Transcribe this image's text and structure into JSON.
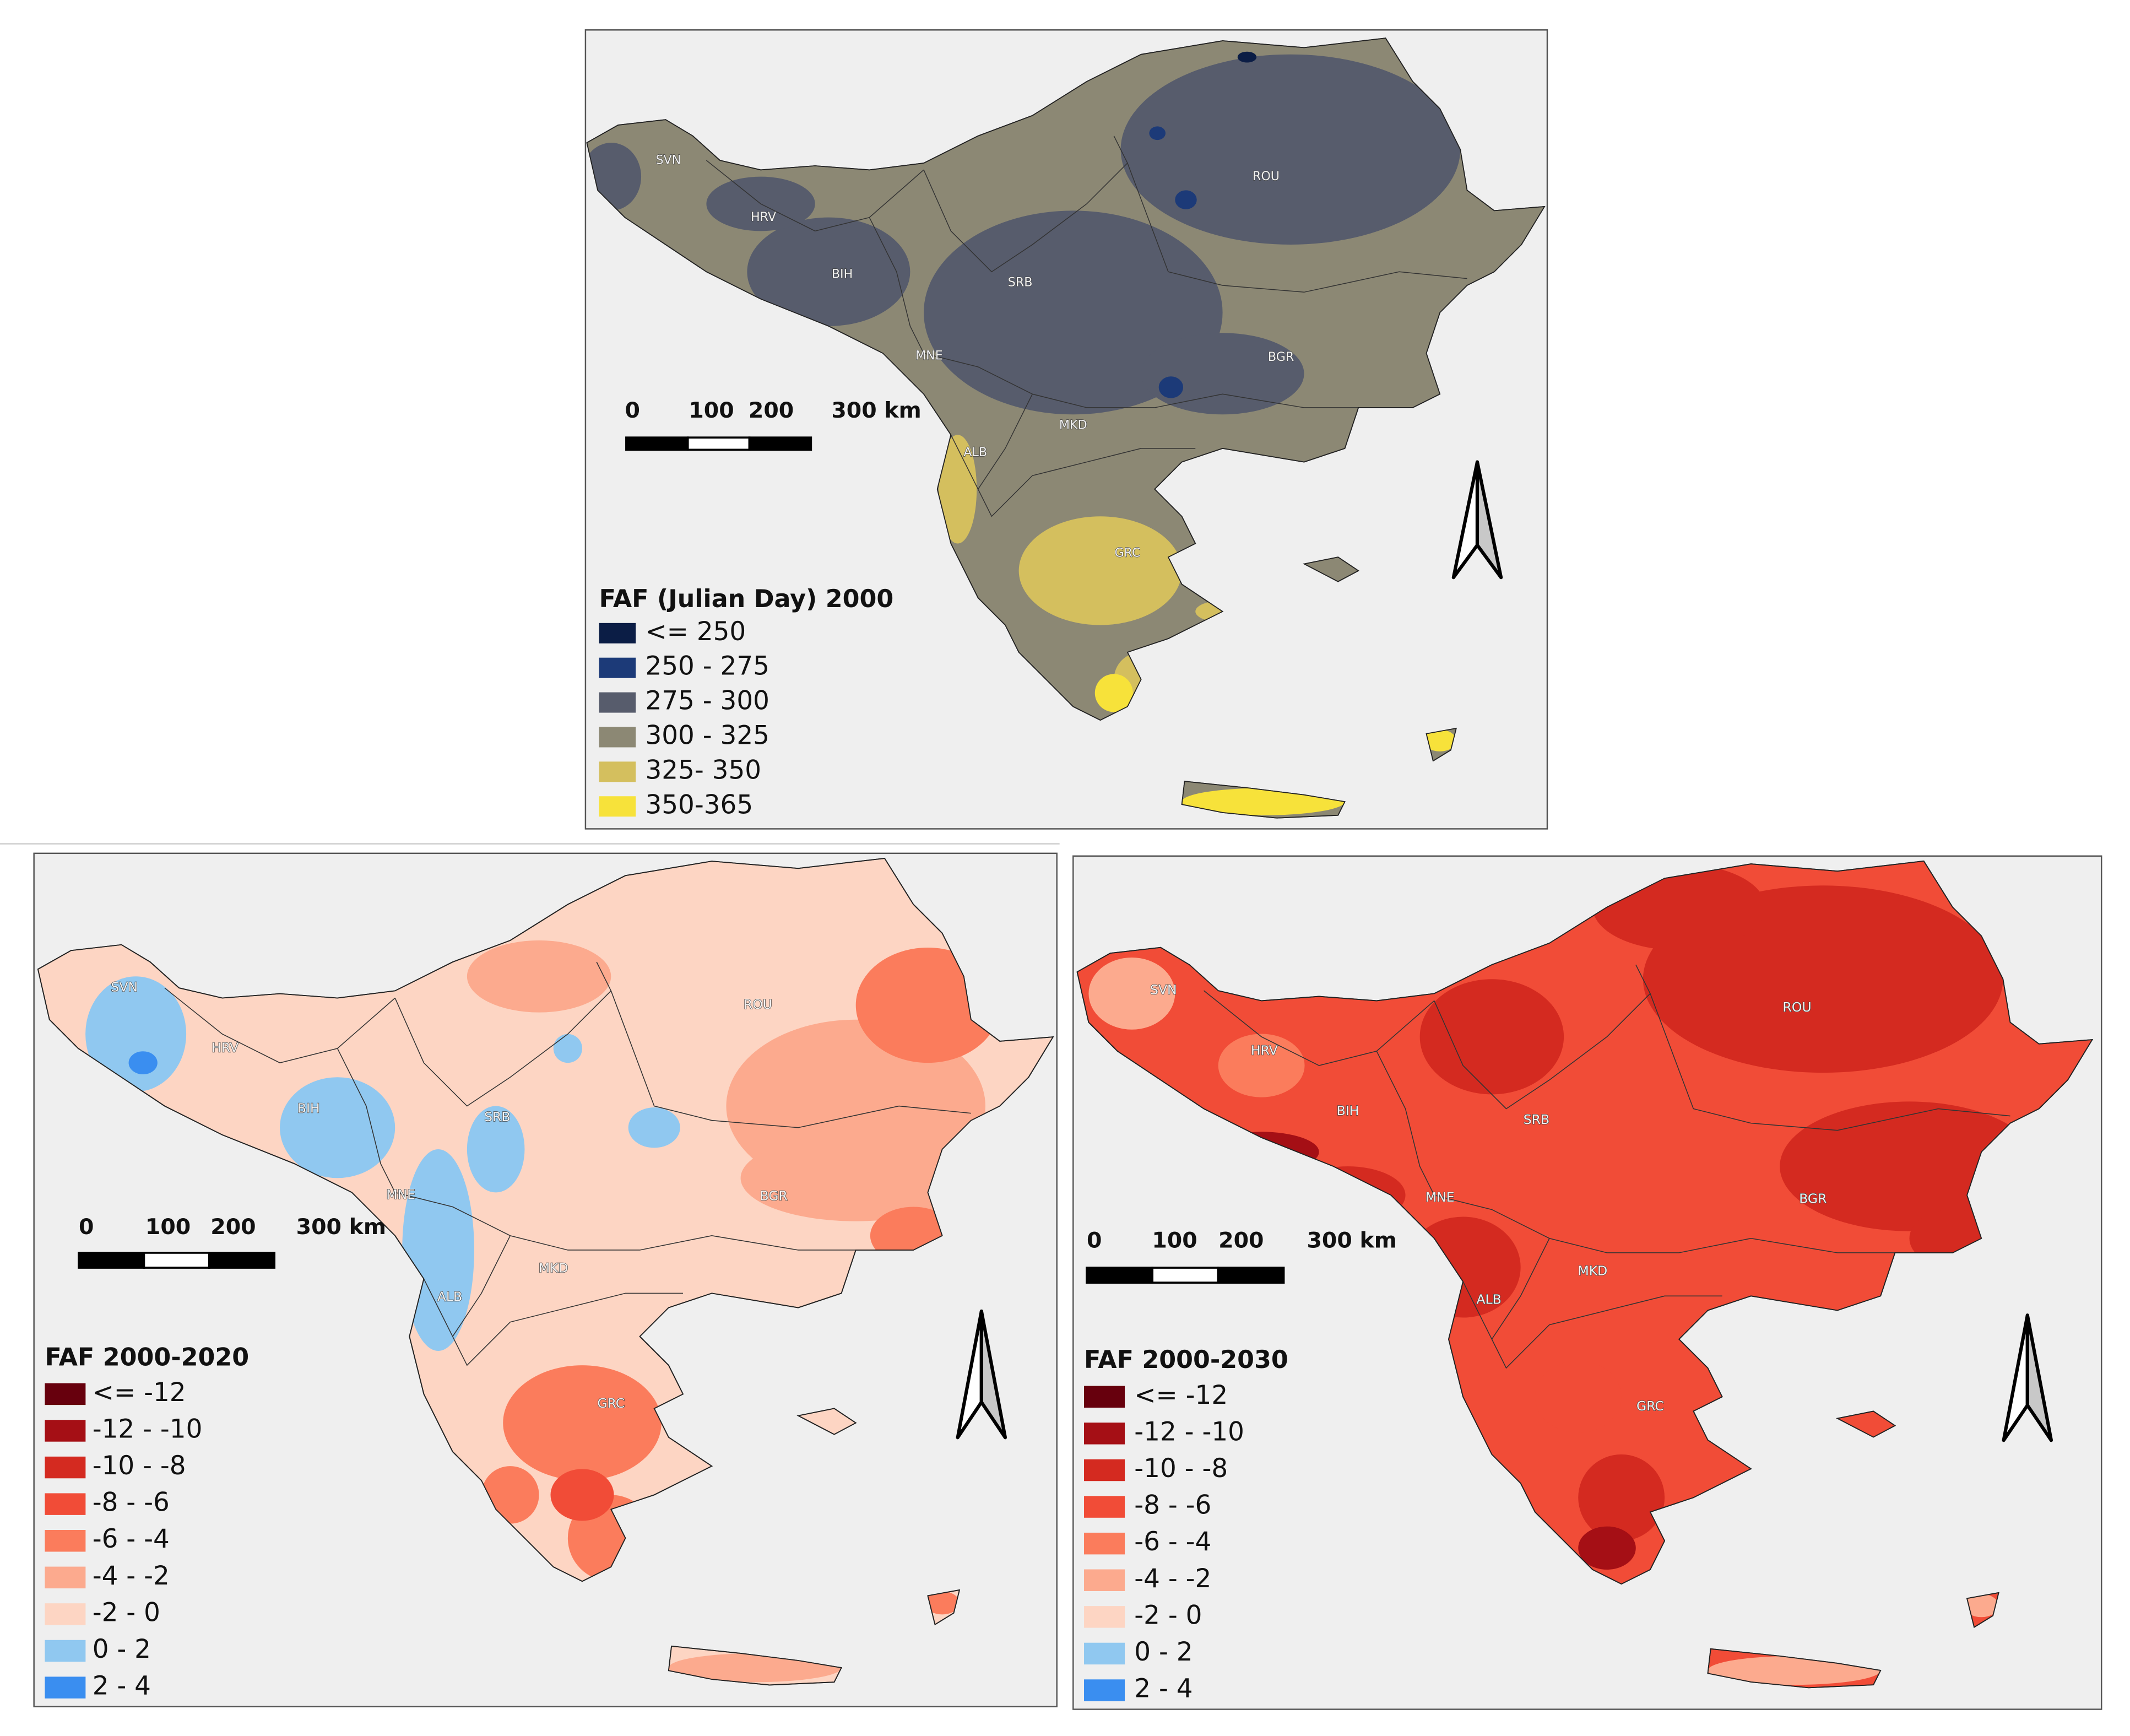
{
  "maps": [
    {
      "legend_title": "FAF (Julian Day) 2000",
      "legend": [
        {
          "label": "<= 250",
          "color": "#0b1d45"
        },
        {
          "label": "250 - 275",
          "color": "#1c3a78"
        },
        {
          "label": "275 - 300",
          "color": "#575c6c"
        },
        {
          "label": "300 - 325",
          "color": "#8c8874"
        },
        {
          "label": "325- 350",
          "color": "#d4bf5e"
        },
        {
          "label": "350-365",
          "color": "#f7e23a"
        }
      ],
      "country_labels": [
        "SVN",
        "HRV",
        "BIH",
        "SRB",
        "MNE",
        "ROU",
        "BGR",
        "MKD",
        "ALB",
        "GRC"
      ],
      "scale_bar": [
        "0",
        "100",
        "200",
        "300 km"
      ]
    },
    {
      "legend_title": "FAF 2000-2020",
      "legend": [
        {
          "label": "<= -12",
          "color": "#67000d"
        },
        {
          "label": "-12 - -10",
          "color": "#a50f15"
        },
        {
          "label": "-10 - -8",
          "color": "#d42a20"
        },
        {
          "label": "-8 - -6",
          "color": "#f14c37"
        },
        {
          "label": "-6 - -4",
          "color": "#fb7c5c"
        },
        {
          "label": "-4 - -2",
          "color": "#fcaa8e"
        },
        {
          "label": "-2 - 0",
          "color": "#fdd5c3"
        },
        {
          "label": "0 - 2",
          "color": "#90c8f0"
        },
        {
          "label": "2 - 4",
          "color": "#3a8ef0"
        }
      ],
      "country_labels": [
        "SVN",
        "HRV",
        "BIH",
        "SRB",
        "MNE",
        "ROU",
        "BGR",
        "MKD",
        "ALB",
        "GRC"
      ],
      "scale_bar": [
        "0",
        "100",
        "200",
        "300 km"
      ]
    },
    {
      "legend_title": "FAF 2000-2030",
      "legend": [
        {
          "label": "<= -12",
          "color": "#67000d"
        },
        {
          "label": "-12 - -10",
          "color": "#a50f15"
        },
        {
          "label": "-10 - -8",
          "color": "#d42a20"
        },
        {
          "label": "-8 - -6",
          "color": "#f14c37"
        },
        {
          "label": "-6 - -4",
          "color": "#fb7c5c"
        },
        {
          "label": "-4 - -2",
          "color": "#fcaa8e"
        },
        {
          "label": "-2 - 0",
          "color": "#fdd5c3"
        },
        {
          "label": "0 - 2",
          "color": "#90c8f0"
        },
        {
          "label": "2 - 4",
          "color": "#3a8ef0"
        }
      ],
      "country_labels": [
        "SVN",
        "HRV",
        "BIH",
        "SRB",
        "MNE",
        "ROU",
        "BGR",
        "MKD",
        "ALB",
        "GRC"
      ],
      "scale_bar": [
        "0",
        "100",
        "200",
        "300 km"
      ]
    }
  ]
}
